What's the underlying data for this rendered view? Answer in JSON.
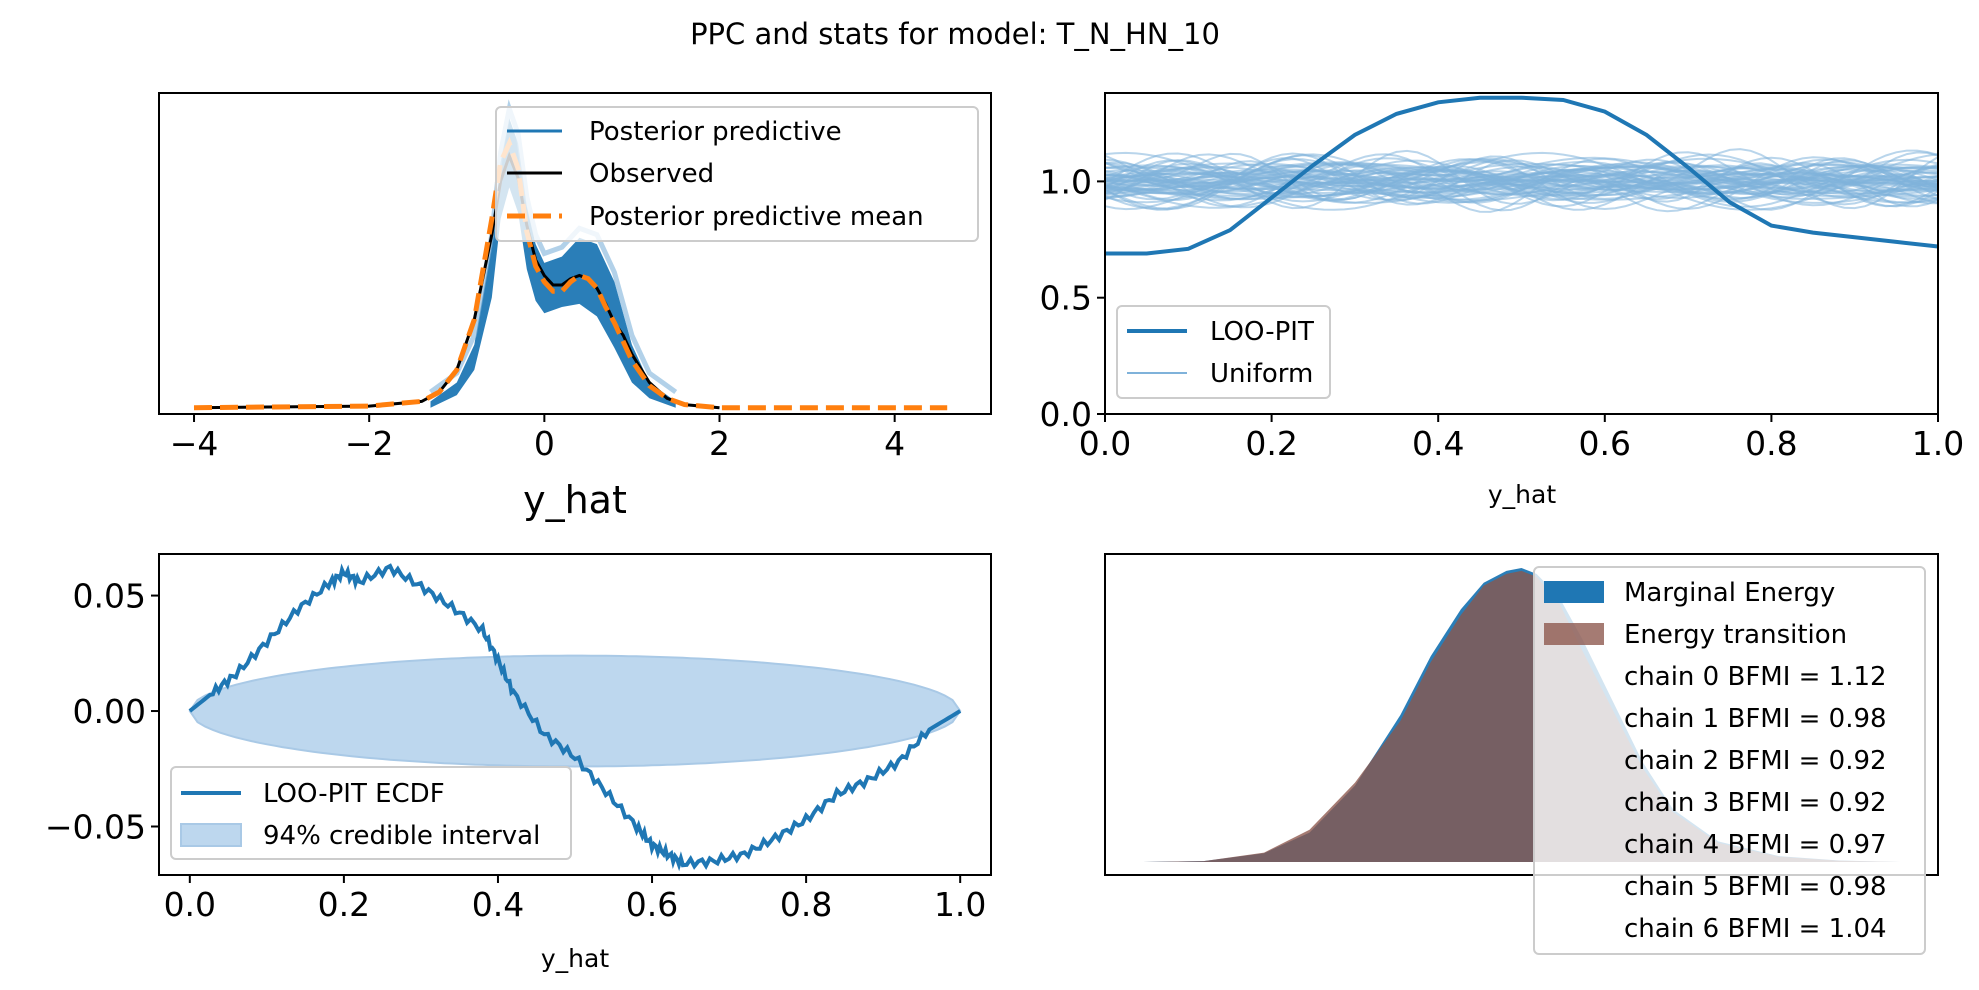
{
  "figure": {
    "title": "PPC and stats for model: T_N_HN_10"
  },
  "colors": {
    "blue": "#1f77b4",
    "light_blue": "#7fb2da",
    "orange": "#ff7f0e",
    "black": "#000000",
    "brown": "#8c564b",
    "interval": "#bdd7ee"
  },
  "chart_data": [
    {
      "type": "line",
      "panel": "ppc",
      "xlabel": "y_hat",
      "ylabel": "",
      "xlim": [
        -4.4,
        5.1
      ],
      "ylim": [
        -0.02,
        1.0
      ],
      "xticks": [
        "−4",
        "−2",
        "0",
        "2",
        "4"
      ],
      "xtick_values": [
        -4,
        -2,
        0,
        2,
        4
      ],
      "y_ticks_shown": false,
      "legend_position": "upper-right",
      "series": [
        {
          "name": "Posterior predictive",
          "kind": "band",
          "x": [
            -1.3,
            -1.0,
            -0.8,
            -0.6,
            -0.5,
            -0.4,
            -0.3,
            -0.2,
            -0.1,
            0.0,
            0.2,
            0.4,
            0.6,
            0.8,
            1.0,
            1.2,
            1.5
          ],
          "lower": [
            0.0,
            0.04,
            0.12,
            0.35,
            0.6,
            0.7,
            0.62,
            0.44,
            0.34,
            0.3,
            0.32,
            0.33,
            0.29,
            0.19,
            0.08,
            0.03,
            0.0
          ],
          "upper": [
            0.02,
            0.08,
            0.2,
            0.52,
            0.78,
            0.92,
            0.84,
            0.64,
            0.52,
            0.46,
            0.48,
            0.54,
            0.52,
            0.4,
            0.2,
            0.08,
            0.02
          ]
        },
        {
          "name": "Observed",
          "x": [
            -4.0,
            -2.0,
            -1.4,
            -1.2,
            -1.0,
            -0.8,
            -0.6,
            -0.5,
            -0.4,
            -0.3,
            -0.2,
            -0.1,
            0.0,
            0.1,
            0.2,
            0.3,
            0.4,
            0.5,
            0.6,
            0.7,
            0.8,
            0.9,
            1.0,
            1.2,
            1.4,
            1.6,
            2.0
          ],
          "y": [
            0.0,
            0.005,
            0.02,
            0.05,
            0.12,
            0.28,
            0.55,
            0.72,
            0.8,
            0.73,
            0.58,
            0.47,
            0.42,
            0.39,
            0.39,
            0.41,
            0.42,
            0.41,
            0.38,
            0.33,
            0.27,
            0.23,
            0.17,
            0.08,
            0.03,
            0.01,
            0.0
          ]
        },
        {
          "name": "Posterior predictive mean",
          "x": [
            -4.0,
            -2.0,
            -1.4,
            -1.2,
            -1.0,
            -0.8,
            -0.6,
            -0.5,
            -0.4,
            -0.3,
            -0.2,
            -0.1,
            0.0,
            0.1,
            0.2,
            0.3,
            0.4,
            0.5,
            0.6,
            0.7,
            0.8,
            0.9,
            1.0,
            1.2,
            1.4,
            1.6,
            2.0,
            4.6
          ],
          "y": [
            0.0,
            0.005,
            0.02,
            0.05,
            0.12,
            0.28,
            0.6,
            0.78,
            0.84,
            0.76,
            0.56,
            0.45,
            0.4,
            0.37,
            0.37,
            0.4,
            0.42,
            0.41,
            0.38,
            0.32,
            0.27,
            0.21,
            0.15,
            0.07,
            0.03,
            0.01,
            0.0,
            0.0
          ]
        }
      ]
    },
    {
      "type": "line",
      "panel": "loo_pit",
      "xlabel": "y_hat",
      "ylabel": "",
      "xlim": [
        0.0,
        1.0
      ],
      "ylim": [
        0.0,
        1.38
      ],
      "xticks": [
        "0.0",
        "0.2",
        "0.4",
        "0.6",
        "0.8",
        "1.0"
      ],
      "yticks": [
        "0.0",
        "0.5",
        "1.0"
      ],
      "legend_position": "lower-left",
      "series": [
        {
          "name": "LOO-PIT",
          "x": [
            0.0,
            0.05,
            0.1,
            0.15,
            0.2,
            0.25,
            0.3,
            0.35,
            0.4,
            0.45,
            0.5,
            0.55,
            0.6,
            0.65,
            0.7,
            0.75,
            0.8,
            0.85,
            0.9,
            0.95,
            1.0
          ],
          "y": [
            0.69,
            0.69,
            0.71,
            0.79,
            0.93,
            1.07,
            1.2,
            1.29,
            1.34,
            1.36,
            1.36,
            1.35,
            1.3,
            1.2,
            1.06,
            0.91,
            0.81,
            0.78,
            0.76,
            0.74,
            0.72
          ]
        },
        {
          "name": "Uniform",
          "kind": "bundle",
          "center": 1.0,
          "spread": 0.14,
          "count": 60
        }
      ]
    },
    {
      "type": "line",
      "panel": "loo_pit_ecdf",
      "xlabel": "y_hat",
      "ylabel": "",
      "xlim": [
        -0.04,
        1.04
      ],
      "ylim": [
        -0.071,
        0.068
      ],
      "xticks": [
        "0.0",
        "0.2",
        "0.4",
        "0.6",
        "0.8",
        "1.0"
      ],
      "yticks": [
        "0.05",
        "0.00",
        "−0.05"
      ],
      "ytick_values": [
        0.05,
        0.0,
        -0.05
      ],
      "legend_position": "lower-left",
      "series": [
        {
          "name": "LOO-PIT ECDF",
          "x": [
            0.0,
            0.03,
            0.06,
            0.1,
            0.14,
            0.18,
            0.2,
            0.22,
            0.26,
            0.3,
            0.34,
            0.38,
            0.4,
            0.42,
            0.46,
            0.5,
            0.54,
            0.58,
            0.6,
            0.62,
            0.64,
            0.68,
            0.72,
            0.76,
            0.8,
            0.84,
            0.88,
            0.92,
            0.96,
            1.0
          ],
          "y": [
            0.0,
            0.008,
            0.016,
            0.03,
            0.044,
            0.055,
            0.06,
            0.056,
            0.062,
            0.054,
            0.045,
            0.035,
            0.022,
            0.008,
            -0.01,
            -0.02,
            -0.035,
            -0.05,
            -0.058,
            -0.062,
            -0.066,
            -0.065,
            -0.062,
            -0.055,
            -0.047,
            -0.036,
            -0.03,
            -0.022,
            -0.008,
            0.0
          ]
        },
        {
          "name": "94% credible interval",
          "kind": "band",
          "half_width_max": 0.024
        }
      ]
    },
    {
      "type": "area",
      "panel": "energy",
      "xlabel": "",
      "ylabel": "",
      "x_ticks_shown": false,
      "y_ticks_shown": false,
      "legend_position": "upper-right",
      "series": [
        {
          "name": "Marginal Energy",
          "x": [
            0.0,
            0.08,
            0.16,
            0.22,
            0.28,
            0.34,
            0.38,
            0.42,
            0.45,
            0.48,
            0.5,
            0.52,
            0.55,
            0.58,
            0.62,
            0.66,
            0.7,
            0.76,
            0.84,
            0.92,
            1.0
          ],
          "y": [
            0.0,
            0.003,
            0.03,
            0.1,
            0.26,
            0.5,
            0.7,
            0.86,
            0.95,
            0.99,
            1.0,
            0.98,
            0.9,
            0.76,
            0.55,
            0.34,
            0.18,
            0.07,
            0.02,
            0.005,
            0.0
          ]
        },
        {
          "name": "Energy transition",
          "x": [
            0.0,
            0.08,
            0.16,
            0.22,
            0.28,
            0.34,
            0.38,
            0.42,
            0.45,
            0.48,
            0.5,
            0.52,
            0.55,
            0.58,
            0.62,
            0.66,
            0.7,
            0.76,
            0.84,
            0.92,
            1.0
          ],
          "y": [
            0.0,
            0.003,
            0.032,
            0.11,
            0.27,
            0.48,
            0.68,
            0.84,
            0.94,
            0.98,
            0.99,
            0.97,
            0.88,
            0.72,
            0.52,
            0.32,
            0.17,
            0.065,
            0.018,
            0.004,
            0.0
          ]
        }
      ],
      "bfmi": [
        {
          "label": "chain  0 BFMI = 1.12"
        },
        {
          "label": "chain  1 BFMI = 0.98"
        },
        {
          "label": "chain  2 BFMI = 0.92"
        },
        {
          "label": "chain  3 BFMI = 0.92"
        },
        {
          "label": "chain  4 BFMI = 0.97"
        },
        {
          "label": "chain  5 BFMI = 0.98"
        },
        {
          "label": "chain  6 BFMI = 1.04"
        }
      ]
    }
  ]
}
